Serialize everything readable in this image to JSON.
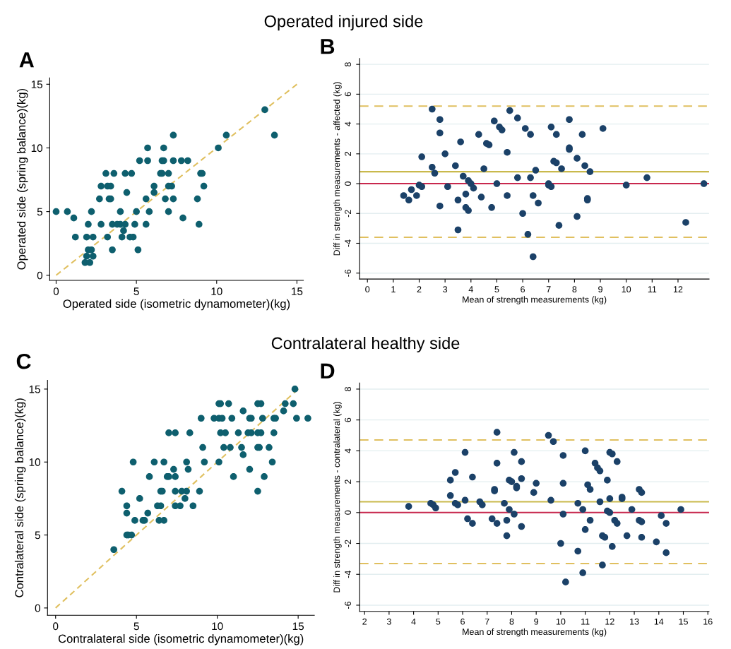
{
  "chart_data": [
    {
      "type": "scatter",
      "title": "Operated injured side",
      "annotations": [
        "A"
      ],
      "xlabel": "Operated side (isometric dynamometer)(kg)",
      "ylabel": "Operated side (spring balance)(kg)",
      "xlim": [
        -0.4,
        15.4
      ],
      "ylim": [
        -0.4,
        15.5
      ],
      "xticks": [
        0,
        5,
        10,
        15
      ],
      "yticks": [
        0,
        5,
        10,
        15
      ],
      "grid": false,
      "series": [
        {
          "marker": "circle",
          "color": "#0e5f6e",
          "x": [
            13.0,
            7.3,
            10.6,
            13.6,
            5.7,
            6.7,
            10.1,
            5.2,
            5.7,
            6.6,
            6.7,
            7.3,
            7.8,
            8.2,
            3.1,
            3.6,
            4.3,
            4.7,
            6.5,
            6.6,
            7.0,
            9.0,
            9.1,
            2.8,
            3.2,
            3.4,
            6.1,
            7.0,
            7.2,
            9.2,
            4.4,
            6.1,
            2.7,
            3.3,
            3.4,
            5.6,
            6.8,
            7.3,
            8.8,
            0,
            0.7,
            2.2,
            4.0,
            5.0,
            5.8,
            7.0,
            1.1,
            7.9,
            2.0,
            2.8,
            3.5,
            3.8,
            4.0,
            4.3,
            4.9,
            5.6,
            8.9,
            4.2,
            1.2,
            1.9,
            2.3,
            3.2,
            4.1,
            4.6,
            4.8,
            2.0,
            2.2,
            3.5,
            5.1,
            1.9,
            2.3,
            1.8,
            2.1
          ],
          "values": [
            13,
            11,
            11,
            11,
            10,
            10,
            10,
            9,
            9,
            9,
            9,
            9,
            9,
            9,
            8,
            8,
            8,
            8,
            8,
            8,
            8,
            8,
            8,
            7,
            7,
            7,
            7,
            7,
            7,
            7,
            6.5,
            6.5,
            6,
            6,
            6,
            6,
            6,
            6,
            6,
            5,
            5,
            5,
            5,
            5,
            5,
            5,
            4.5,
            4.5,
            4,
            4,
            4,
            4,
            4,
            4,
            4,
            4,
            4,
            3.5,
            3,
            3,
            3,
            3,
            3,
            3,
            3,
            2,
            2,
            2,
            2,
            1.5,
            1.5,
            1,
            1
          ]
        },
        {
          "type": "line",
          "color": "#e0c060",
          "line_style": "dashed",
          "x": [
            0,
            15
          ],
          "values": [
            0,
            15
          ]
        }
      ]
    },
    {
      "type": "scatter",
      "annotations": [
        "B"
      ],
      "xlabel": "Mean of strength measurements (kg)",
      "ylabel": "Diff in strength measurements - affected (kg)",
      "xlim": [
        -0.3,
        13.2
      ],
      "ylim": [
        -6.4,
        8.4
      ],
      "xticks": [
        0,
        1,
        2,
        3,
        4,
        5,
        6,
        7,
        8,
        9,
        10,
        11,
        12
      ],
      "yticks": [
        -6,
        -4,
        -2,
        0,
        2,
        4,
        6,
        8
      ],
      "grid": "y",
      "series": [
        {
          "marker": "circle",
          "color": "#1b4168",
          "x": [
            1.4,
            1.6,
            1.7,
            1.9,
            2.0,
            2.1,
            2.1,
            2.5,
            2.5,
            2.6,
            2.8,
            2.8,
            2.8,
            3.0,
            3.1,
            3.4,
            3.5,
            3.5,
            3.6,
            3.7,
            3.8,
            3.8,
            3.9,
            3.9,
            4.0,
            4.1,
            4.3,
            4.4,
            4.5,
            4.6,
            4.7,
            4.8,
            4.9,
            5.0,
            5.1,
            5.2,
            5.4,
            5.4,
            5.5,
            5.8,
            5.8,
            6.0,
            6.1,
            6.2,
            6.3,
            6.3,
            6.4,
            6.4,
            6.5,
            6.6,
            7.0,
            7.0,
            7.1,
            7.1,
            7.2,
            7.3,
            7.3,
            7.4,
            7.5,
            7.8,
            7.8,
            7.8,
            8.1,
            8.1,
            8.3,
            8.4,
            8.5,
            8.5,
            8.6,
            9.1,
            10.0,
            10.8,
            12.3,
            13.0
          ],
          "values": [
            -0.8,
            -1.1,
            -0.4,
            -0.8,
            -0.1,
            -0.2,
            1.8,
            5.0,
            1.1,
            0.7,
            -1.5,
            3.4,
            4.3,
            2.0,
            -0.2,
            1.2,
            -3.1,
            -1.1,
            2.8,
            0.5,
            -0.7,
            -1.6,
            -1.8,
            0.2,
            0.0,
            -0.3,
            3.3,
            -0.9,
            1.0,
            2.7,
            2.6,
            -1.6,
            4.2,
            0.0,
            3.8,
            3.6,
            -0.8,
            2.1,
            4.9,
            4.4,
            0.4,
            -2.0,
            3.7,
            -3.4,
            0.4,
            3.3,
            -0.8,
            -4.9,
            0.9,
            -1.3,
            0.0,
            -0.1,
            -0.2,
            3.8,
            1.5,
            1.4,
            3.3,
            -2.8,
            1.0,
            2.4,
            2.3,
            4.3,
            -2.2,
            1.7,
            3.3,
            1.2,
            -1.0,
            -1.1,
            0.8,
            3.7,
            -0.1,
            0.4,
            -2.6,
            0.0
          ]
        }
      ],
      "ref_lines": [
        {
          "axis": "y",
          "value": 5.2,
          "color": "#e0c060",
          "line_style": "dashed"
        },
        {
          "axis": "y",
          "value": -3.6,
          "color": "#e0c060",
          "line_style": "dashed"
        },
        {
          "axis": "y",
          "value": 0.8,
          "color": "#c9b94c",
          "line_style": "solid"
        },
        {
          "axis": "y",
          "value": 0,
          "color": "#c8284e",
          "line_style": "solid"
        }
      ]
    },
    {
      "type": "scatter",
      "title": "Contralateral healthy side",
      "annotations": [
        "C"
      ],
      "xlabel": "Contralateral side (isometric dynamometer)(kg)",
      "ylabel": "Contralateral side (spring balance)(kg)",
      "xlim": [
        -0.5,
        16.0
      ],
      "ylim": [
        -0.5,
        15.6
      ],
      "xticks": [
        0,
        5,
        10,
        15
      ],
      "yticks": [
        0,
        5,
        10,
        15
      ],
      "grid": false,
      "series": [
        {
          "marker": "circle",
          "color": "#0e5f6e",
          "x": [
            14.8,
            10.1,
            10.2,
            10.7,
            12.5,
            12.7,
            14.2,
            14.7,
            11.6,
            14.1,
            9.0,
            9.8,
            10.1,
            10.3,
            10.9,
            12.0,
            12.1,
            12.8,
            13.5,
            13.6,
            14.9,
            15.6,
            7.0,
            7.4,
            8.3,
            10.2,
            10.5,
            11.3,
            11.9,
            12.1,
            12.5,
            12.7,
            13.5,
            9.1,
            10.4,
            10.8,
            11.5,
            12.5,
            12.6,
            13.2,
            11.6,
            4.8,
            6.1,
            6.7,
            8.1,
            9.2,
            10.1,
            13.4,
            7.3,
            8.2,
            12.0,
            5.8,
            6.9,
            7.0,
            7.4,
            11.0,
            12.9,
            4.1,
            6.5,
            6.6,
            7.4,
            7.8,
            8.1,
            8.9,
            12.5,
            5.2,
            8.0,
            4.4,
            6.3,
            6.5,
            7.4,
            7.7,
            8.5,
            4.4,
            5.7,
            4.9,
            5.4,
            5.5,
            6.4,
            6.7,
            4.4,
            4.5,
            4.7,
            3.6
          ],
          "values": [
            15,
            14,
            14,
            14,
            14,
            14,
            14,
            14,
            13.5,
            13.5,
            13,
            13,
            13,
            13,
            13,
            13,
            13,
            13,
            13,
            13,
            13,
            13,
            12,
            12,
            12,
            12,
            12,
            12,
            12,
            12,
            12,
            12,
            12,
            11,
            11,
            11,
            11,
            11,
            11,
            11,
            10.5,
            10,
            10,
            10,
            10,
            10,
            10,
            10,
            9.5,
            9.5,
            9.5,
            9,
            9,
            9,
            9,
            9,
            9,
            8,
            8,
            8,
            8,
            8,
            8,
            8,
            8,
            7.5,
            7.5,
            7,
            7,
            7,
            7,
            7,
            7,
            6.5,
            6.5,
            6,
            6,
            6,
            6,
            6,
            5,
            5,
            5,
            4
          ]
        },
        {
          "type": "line",
          "color": "#e0c060",
          "line_style": "dashed",
          "x": [
            0,
            15
          ],
          "values": [
            0,
            15
          ]
        }
      ]
    },
    {
      "type": "scatter",
      "annotations": [
        "D"
      ],
      "xlabel": "Mean of strength measurements (kg)",
      "ylabel": "Diff in strength measurements - contralateral (kg)",
      "xlim": [
        1.8,
        16.05
      ],
      "ylim": [
        -6.4,
        8.4
      ],
      "xticks": [
        2,
        3,
        4,
        5,
        6,
        7,
        8,
        9,
        10,
        11,
        12,
        13,
        14,
        15,
        16
      ],
      "yticks": [
        -6,
        -4,
        -2,
        0,
        2,
        4,
        6,
        8
      ],
      "grid": "y",
      "series": [
        {
          "marker": "circle",
          "color": "#1b4168",
          "x": [
            3.8,
            4.7,
            4.8,
            4.9,
            5.5,
            5.5,
            5.7,
            5.7,
            5.8,
            6.1,
            6.1,
            6.2,
            6.4,
            6.4,
            6.7,
            6.8,
            7.2,
            7.3,
            7.3,
            7.4,
            7.4,
            7.4,
            7.7,
            7.8,
            7.8,
            7.9,
            7.9,
            8.0,
            8.1,
            8.1,
            8.2,
            8.2,
            8.4,
            8.4,
            8.4,
            8.9,
            9.0,
            9.5,
            9.6,
            9.7,
            10.0,
            10.1,
            10.1,
            10.1,
            10.2,
            10.7,
            10.7,
            10.9,
            10.9,
            11.0,
            11.0,
            11.1,
            11.2,
            11.2,
            11.4,
            11.5,
            11.6,
            11.6,
            11.7,
            11.7,
            11.8,
            11.9,
            11.9,
            12.0,
            12.0,
            12.0,
            12.1,
            12.1,
            12.2,
            12.3,
            12.3,
            12.5,
            12.5,
            12.7,
            12.9,
            13.2,
            13.2,
            13.3,
            13.3,
            13.3,
            13.9,
            14.1,
            14.3,
            14.3,
            14.9
          ],
          "values": [
            0.4,
            0.6,
            0.5,
            0.3,
            2.1,
            1.1,
            2.6,
            0.6,
            0.5,
            3.9,
            0.8,
            -0.4,
            2.3,
            -0.7,
            0.7,
            0.5,
            -0.4,
            1.5,
            1.4,
            -0.7,
            5.2,
            3.2,
            0.6,
            -0.5,
            -1.5,
            0.2,
            2.1,
            2.0,
            3.9,
            -0.1,
            1.7,
            1.6,
            3.3,
            2.2,
            -0.9,
            1.3,
            1.9,
            5.0,
            0.8,
            4.6,
            -2.0,
            1.9,
            -0.1,
            3.7,
            -4.5,
            0.6,
            -2.5,
            0.2,
            -3.9,
            4.0,
            -1.1,
            1.8,
            1.5,
            -0.5,
            3.2,
            2.9,
            2.7,
            0.7,
            -3.4,
            -1.5,
            -1.6,
            2.1,
            0.1,
            0.0,
            0.9,
            3.9,
            3.8,
            -2.2,
            -0.5,
            3.3,
            -0.7,
            1.0,
            0.9,
            -1.5,
            0.2,
            1.5,
            -0.5,
            -0.6,
            1.3,
            -1.6,
            -1.9,
            -0.2,
            -2.6,
            -0.7,
            0.2
          ]
        }
      ],
      "ref_lines": [
        {
          "axis": "y",
          "value": 4.7,
          "color": "#e0c060",
          "line_style": "dashed"
        },
        {
          "axis": "y",
          "value": -3.3,
          "color": "#e0c060",
          "line_style": "dashed"
        },
        {
          "axis": "y",
          "value": 0.7,
          "color": "#c9b94c",
          "line_style": "solid"
        },
        {
          "axis": "y",
          "value": 0,
          "color": "#c8284e",
          "line_style": "solid"
        }
      ]
    }
  ]
}
